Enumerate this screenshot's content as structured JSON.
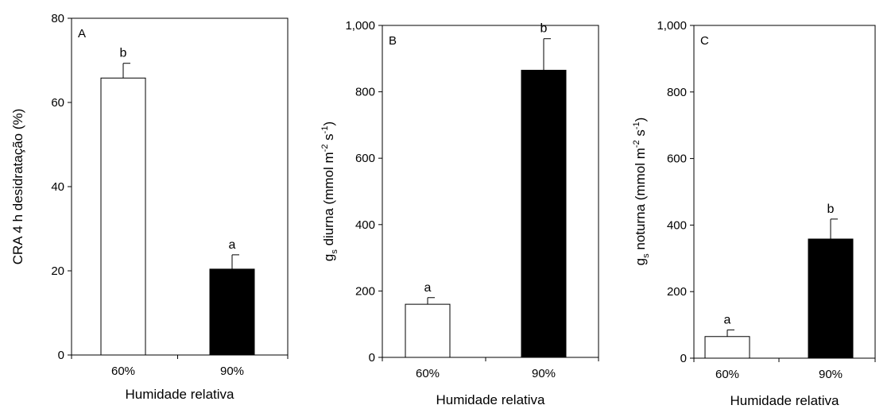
{
  "chart_data": [
    {
      "type": "bar",
      "panel_label": "A",
      "categories": [
        "60%",
        "90%"
      ],
      "values": [
        65.8,
        20.4
      ],
      "errors": [
        3.5,
        3.4
      ],
      "significance": [
        "b",
        "a"
      ],
      "bar_colors": [
        "#ffffff",
        "#000000"
      ],
      "xlabel": "Humidade relativa",
      "ylabel": "CRA 4 h desidratação (%)",
      "ylim": [
        0,
        80
      ],
      "yticks": [
        0,
        20,
        40,
        60,
        80
      ],
      "ytick_labels": [
        "0",
        "20",
        "40",
        "60",
        "80"
      ]
    },
    {
      "type": "bar",
      "panel_label": "B",
      "categories": [
        "60%",
        "90%"
      ],
      "values": [
        160,
        865
      ],
      "errors": [
        20,
        95
      ],
      "significance": [
        "a",
        "b"
      ],
      "bar_colors": [
        "#ffffff",
        "#000000"
      ],
      "xlabel": "Humidade relativa",
      "ylabel_parts": [
        "g",
        "s",
        " diurna (mmol m",
        "-2",
        " s",
        "-1",
        ")"
      ],
      "ylim": [
        0,
        1000
      ],
      "yticks": [
        0,
        200,
        400,
        600,
        800,
        1000
      ],
      "ytick_labels": [
        "0",
        "200",
        "400",
        "600",
        "800",
        "1,000"
      ]
    },
    {
      "type": "bar",
      "panel_label": "C",
      "categories": [
        "60%",
        "90%"
      ],
      "values": [
        65,
        358
      ],
      "errors": [
        20,
        60
      ],
      "significance": [
        "a",
        "b"
      ],
      "bar_colors": [
        "#ffffff",
        "#000000"
      ],
      "xlabel": "Humidade relativa",
      "ylabel_parts": [
        "g",
        "s",
        " noturna (mmol m",
        "-2",
        " s",
        "-1",
        ")"
      ],
      "ylim": [
        0,
        1000
      ],
      "yticks": [
        0,
        200,
        400,
        600,
        800,
        1000
      ],
      "ytick_labels": [
        "0",
        "200",
        "400",
        "600",
        "800",
        "1,000"
      ]
    }
  ]
}
